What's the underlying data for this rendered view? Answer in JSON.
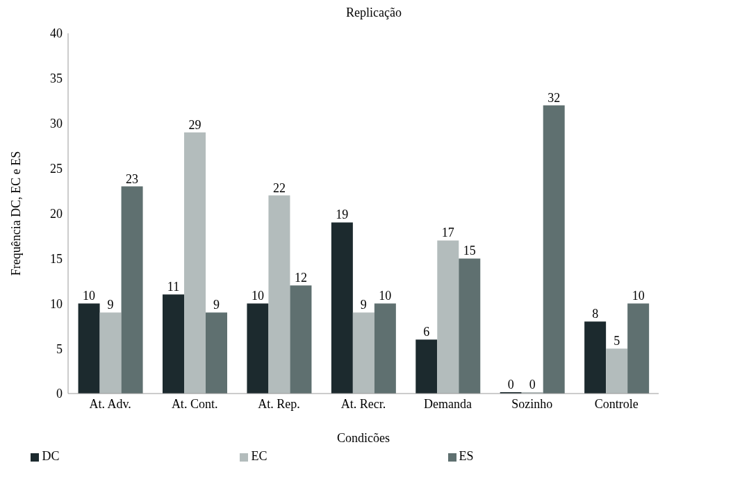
{
  "chart_data": {
    "type": "bar",
    "title": "Replicação",
    "xlabel": "Condicões",
    "ylabel": "Frequência DC, EC e ES",
    "categories": [
      "At. Adv.",
      "At. Cont.",
      "At. Rep.",
      "At. Recr.",
      "Demanda",
      "Sozinho",
      "Controle"
    ],
    "series": [
      {
        "name": "DC",
        "color": "#1c2a2e",
        "values": [
          10,
          11,
          10,
          19,
          6,
          0,
          8
        ]
      },
      {
        "name": "EC",
        "color": "#b3bcbc",
        "values": [
          9,
          29,
          22,
          9,
          17,
          0,
          5
        ]
      },
      {
        "name": "ES",
        "color": "#5f7070",
        "values": [
          23,
          9,
          12,
          10,
          15,
          32,
          10
        ]
      }
    ],
    "ylim": [
      0,
      40
    ],
    "yticks": [
      0,
      5,
      10,
      15,
      20,
      25,
      30,
      35,
      40
    ],
    "data_labels": true,
    "legend": "bottom"
  }
}
